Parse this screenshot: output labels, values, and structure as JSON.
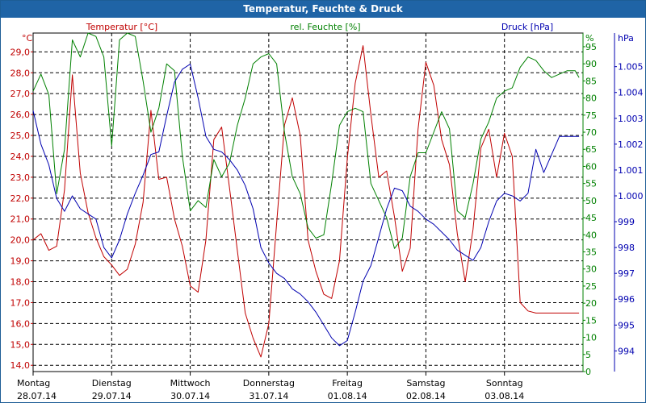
{
  "window": {
    "title": "Temperatur, Feuchte & Druck"
  },
  "colors": {
    "temperature": "#c00000",
    "humidity": "#008000",
    "pressure": "#0000b0",
    "title_bar": "#1f64a6"
  },
  "chart_data": {
    "type": "line",
    "title": "Temperatur, Feuchte & Druck",
    "grid": true,
    "x_axis": {
      "days": [
        "Montag",
        "Dienstag",
        "Mittwoch",
        "Donnerstag",
        "Freitag",
        "Samstag",
        "Sonntag"
      ],
      "dates": [
        "28.07.14",
        "29.07.14",
        "30.07.14",
        "31.07.14",
        "01.08.14",
        "02.08.14",
        "03.08.14"
      ],
      "range_days": [
        0,
        7.0
      ]
    },
    "axes": {
      "temperature": {
        "unit": "°C",
        "label": "Temperatur [°C]",
        "range": [
          13.7,
          29.9
        ],
        "ticks": [
          "14,0",
          "15,0",
          "16,0",
          "17,0",
          "18,0",
          "19,0",
          "20,0",
          "21,0",
          "22,0",
          "23,0",
          "24,0",
          "25,0",
          "26,0",
          "27,0",
          "28,0",
          "29,0"
        ]
      },
      "humidity": {
        "unit": "%",
        "label": "rel. Feuchte [%]",
        "range": [
          0,
          99
        ],
        "ticks": [
          "0",
          "5",
          "10",
          "15",
          "20",
          "25",
          "30",
          "35",
          "40",
          "45",
          "50",
          "55",
          "60",
          "65",
          "70",
          "75",
          "80",
          "85",
          "90",
          "95"
        ]
      },
      "pressure": {
        "unit": "hPa",
        "label": "Druck [hPa]",
        "range": [
          993.2,
          1006.3
        ],
        "ticks": [
          "994",
          "995",
          "996",
          "997",
          "998",
          "999",
          "1.000",
          "1.001",
          "1.002",
          "1.003",
          "1.004",
          "1.005"
        ]
      }
    },
    "series": [
      {
        "name": "Temperatur [°C]",
        "axis": "temperature",
        "x": [
          0,
          0.1,
          0.2,
          0.3,
          0.4,
          0.5,
          0.6,
          0.7,
          0.8,
          0.9,
          1.0,
          1.1,
          1.2,
          1.3,
          1.4,
          1.5,
          1.6,
          1.7,
          1.8,
          1.9,
          2.0,
          2.1,
          2.2,
          2.3,
          2.4,
          2.5,
          2.6,
          2.7,
          2.8,
          2.9,
          3.0,
          3.1,
          3.2,
          3.3,
          3.4,
          3.5,
          3.6,
          3.7,
          3.8,
          3.9,
          4.0,
          4.1,
          4.2,
          4.3,
          4.4,
          4.5,
          4.6,
          4.7,
          4.8,
          4.9,
          5.0,
          5.1,
          5.2,
          5.3,
          5.4,
          5.5,
          5.6,
          5.7,
          5.8,
          5.9,
          6.0,
          6.1,
          6.2,
          6.3,
          6.4,
          6.5,
          6.6,
          6.7,
          6.8,
          6.9,
          6.95
        ],
        "values": [
          20.0,
          20.3,
          19.5,
          19.7,
          22.4,
          27.9,
          23.2,
          21.3,
          20.1,
          19.2,
          18.8,
          18.3,
          18.6,
          19.8,
          21.8,
          26.2,
          22.9,
          23.0,
          21.0,
          19.7,
          17.8,
          17.5,
          20.0,
          24.8,
          25.4,
          22.5,
          19.5,
          16.5,
          15.3,
          14.4,
          16.0,
          20.8,
          25.5,
          26.8,
          25.0,
          20.0,
          18.5,
          17.4,
          17.2,
          19.0,
          23.9,
          27.5,
          29.3,
          26.0,
          23.0,
          23.3,
          21.1,
          18.5,
          19.6,
          25.3,
          28.5,
          27.4,
          24.8,
          23.6,
          20.3,
          18.0,
          20.5,
          24.4,
          25.3,
          23.0,
          25.1,
          24.0,
          17.0,
          16.6,
          16.5,
          16.5,
          16.5,
          16.5,
          16.5,
          16.5,
          16.5
        ]
      },
      {
        "name": "rel. Feuchte [%]",
        "axis": "humidity",
        "x": [
          0,
          0.1,
          0.2,
          0.3,
          0.4,
          0.5,
          0.6,
          0.7,
          0.8,
          0.9,
          1.0,
          1.1,
          1.2,
          1.3,
          1.4,
          1.5,
          1.6,
          1.7,
          1.8,
          1.9,
          2.0,
          2.1,
          2.2,
          2.3,
          2.4,
          2.5,
          2.6,
          2.7,
          2.8,
          2.9,
          3.0,
          3.1,
          3.2,
          3.3,
          3.4,
          3.5,
          3.6,
          3.7,
          3.8,
          3.9,
          4.0,
          4.1,
          4.2,
          4.3,
          4.4,
          4.5,
          4.6,
          4.7,
          4.8,
          4.9,
          5.0,
          5.1,
          5.2,
          5.3,
          5.4,
          5.5,
          5.6,
          5.7,
          5.8,
          5.9,
          6.0,
          6.1,
          6.2,
          6.3,
          6.4,
          6.5,
          6.6,
          6.7,
          6.8,
          6.9,
          6.95
        ],
        "values": [
          82,
          87,
          81,
          52,
          65,
          97,
          92,
          99,
          98,
          92,
          66,
          97,
          99,
          98,
          85,
          70,
          77,
          90,
          88,
          63,
          47,
          50,
          48,
          62,
          57,
          61,
          72,
          80,
          90,
          92,
          93,
          90,
          70,
          57,
          52,
          42,
          39,
          40,
          55,
          72,
          76,
          77,
          76,
          55,
          50,
          45,
          36,
          39,
          57,
          64,
          64,
          70,
          76,
          71,
          47,
          45,
          55,
          68,
          73,
          80,
          82,
          83,
          89,
          92,
          91,
          88,
          86,
          87,
          88,
          88,
          86
        ]
      },
      {
        "name": "Druck [hPa]",
        "axis": "pressure",
        "x": [
          0,
          0.1,
          0.2,
          0.3,
          0.4,
          0.5,
          0.6,
          0.7,
          0.8,
          0.9,
          1.0,
          1.1,
          1.2,
          1.3,
          1.4,
          1.5,
          1.6,
          1.7,
          1.8,
          1.9,
          2.0,
          2.1,
          2.2,
          2.3,
          2.4,
          2.5,
          2.6,
          2.7,
          2.8,
          2.9,
          3.0,
          3.1,
          3.2,
          3.3,
          3.4,
          3.5,
          3.6,
          3.7,
          3.8,
          3.9,
          4.0,
          4.1,
          4.2,
          4.3,
          4.4,
          4.5,
          4.6,
          4.7,
          4.8,
          4.9,
          5.0,
          5.1,
          5.2,
          5.3,
          5.4,
          5.5,
          5.6,
          5.7,
          5.8,
          5.9,
          6.0,
          6.1,
          6.2,
          6.3,
          6.4,
          6.5,
          6.6,
          6.7,
          6.8,
          6.9,
          6.95
        ],
        "values": [
          1003.3,
          1002.0,
          1001.2,
          999.9,
          999.4,
          1000.0,
          999.5,
          999.3,
          999.1,
          998.0,
          997.6,
          998.3,
          999.3,
          1000.1,
          1000.8,
          1001.6,
          1001.7,
          1003.1,
          1004.4,
          1004.9,
          1005.1,
          1003.8,
          1002.3,
          1001.8,
          1001.7,
          1001.4,
          1001.0,
          1000.4,
          999.5,
          998.0,
          997.4,
          997.0,
          996.8,
          996.4,
          996.2,
          995.9,
          995.5,
          995.0,
          994.5,
          994.2,
          994.4,
          995.5,
          996.7,
          997.3,
          998.4,
          999.5,
          1000.3,
          1000.2,
          999.6,
          999.4,
          999.1,
          998.9,
          998.6,
          998.3,
          997.9,
          997.7,
          997.5,
          998.0,
          999.0,
          999.8,
          1000.1,
          1000.0,
          999.8,
          1000.1,
          1001.8,
          1000.9,
          1001.6,
          1002.3,
          1002.3,
          1002.3,
          1002.3
        ]
      }
    ]
  }
}
